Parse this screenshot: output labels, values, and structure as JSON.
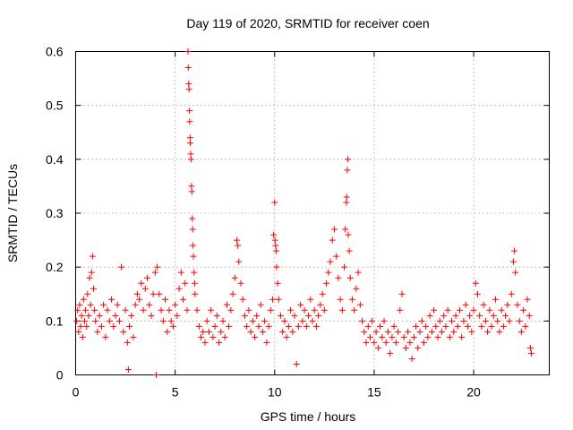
{
  "chart_data": {
    "type": "scatter",
    "title": "Day 119 of 2020, SRMTID for receiver coen",
    "xlabel": "GPS time / hours",
    "ylabel": "SRMTID / TECUs",
    "xlim": [
      0,
      23.8
    ],
    "ylim": [
      0,
      0.6
    ],
    "x_ticks": [
      0,
      5,
      10,
      15,
      20
    ],
    "y_ticks": [
      0,
      0.1,
      0.2,
      0.3,
      0.4,
      0.5,
      0.6
    ],
    "x_tick_labels": [
      "0",
      "5",
      "10",
      "15",
      "20"
    ],
    "y_tick_labels": [
      "0",
      "0.1",
      "0.2",
      "0.3",
      "0.4",
      "0.5",
      "0.6"
    ],
    "grid": true,
    "marker": "+",
    "series": [
      {
        "name": "SRMTID",
        "color": "#ff0000",
        "points": [
          [
            0.05,
            0.1
          ],
          [
            0.1,
            0.12
          ],
          [
            0.15,
            0.08
          ],
          [
            0.2,
            0.13
          ],
          [
            0.25,
            0.09
          ],
          [
            0.3,
            0.11
          ],
          [
            0.35,
            0.07
          ],
          [
            0.4,
            0.14
          ],
          [
            0.45,
            0.1
          ],
          [
            0.5,
            0.12
          ],
          [
            0.55,
            0.09
          ],
          [
            0.6,
            0.15
          ],
          [
            0.65,
            0.11
          ],
          [
            0.7,
            0.18
          ],
          [
            0.75,
            0.13
          ],
          [
            0.8,
            0.19
          ],
          [
            0.85,
            0.22
          ],
          [
            0.9,
            0.16
          ],
          [
            0.95,
            0.12
          ],
          [
            1.0,
            0.1
          ],
          [
            1.1,
            0.08
          ],
          [
            1.2,
            0.11
          ],
          [
            1.3,
            0.09
          ],
          [
            1.4,
            0.13
          ],
          [
            1.5,
            0.07
          ],
          [
            1.6,
            0.12
          ],
          [
            1.7,
            0.1
          ],
          [
            1.8,
            0.14
          ],
          [
            1.9,
            0.09
          ],
          [
            2.0,
            0.11
          ],
          [
            2.1,
            0.13
          ],
          [
            2.2,
            0.1
          ],
          [
            2.3,
            0.2
          ],
          [
            2.4,
            0.08
          ],
          [
            2.5,
            0.12
          ],
          [
            2.6,
            0.06
          ],
          [
            2.65,
            0.01
          ],
          [
            2.7,
            0.09
          ],
          [
            2.8,
            0.11
          ],
          [
            2.9,
            0.07
          ],
          [
            3.0,
            0.13
          ],
          [
            3.1,
            0.15
          ],
          [
            3.2,
            0.14
          ],
          [
            3.3,
            0.17
          ],
          [
            3.4,
            0.12
          ],
          [
            3.5,
            0.16
          ],
          [
            3.6,
            0.18
          ],
          [
            3.7,
            0.13
          ],
          [
            3.8,
            0.11
          ],
          [
            3.9,
            0.15
          ],
          [
            4.0,
            0.19
          ],
          [
            4.05,
            0.0
          ],
          [
            4.1,
            0.2
          ],
          [
            4.2,
            0.15
          ],
          [
            4.3,
            0.12
          ],
          [
            4.4,
            0.1
          ],
          [
            4.5,
            0.14
          ],
          [
            4.6,
            0.08
          ],
          [
            4.7,
            0.12
          ],
          [
            4.8,
            0.1
          ],
          [
            4.9,
            0.09
          ],
          [
            5.0,
            0.13
          ],
          [
            5.1,
            0.11
          ],
          [
            5.2,
            0.16
          ],
          [
            5.3,
            0.19
          ],
          [
            5.4,
            0.14
          ],
          [
            5.5,
            0.17
          ],
          [
            5.6,
            0.12
          ],
          [
            5.65,
            0.6
          ],
          [
            5.66,
            0.57
          ],
          [
            5.68,
            0.54
          ],
          [
            5.7,
            0.53
          ],
          [
            5.72,
            0.49
          ],
          [
            5.73,
            0.47
          ],
          [
            5.75,
            0.44
          ],
          [
            5.76,
            0.43
          ],
          [
            5.78,
            0.41
          ],
          [
            5.8,
            0.4
          ],
          [
            5.82,
            0.35
          ],
          [
            5.84,
            0.34
          ],
          [
            5.86,
            0.29
          ],
          [
            5.88,
            0.27
          ],
          [
            5.9,
            0.24
          ],
          [
            5.92,
            0.22
          ],
          [
            5.95,
            0.19
          ],
          [
            5.98,
            0.17
          ],
          [
            6.0,
            0.15
          ],
          [
            6.1,
            0.12
          ],
          [
            6.2,
            0.09
          ],
          [
            6.3,
            0.07
          ],
          [
            6.4,
            0.08
          ],
          [
            6.5,
            0.06
          ],
          [
            6.6,
            0.1
          ],
          [
            6.7,
            0.08
          ],
          [
            6.8,
            0.12
          ],
          [
            6.9,
            0.07
          ],
          [
            7.0,
            0.09
          ],
          [
            7.1,
            0.11
          ],
          [
            7.2,
            0.06
          ],
          [
            7.3,
            0.08
          ],
          [
            7.4,
            0.1
          ],
          [
            7.5,
            0.07
          ],
          [
            7.6,
            0.13
          ],
          [
            7.7,
            0.09
          ],
          [
            7.8,
            0.12
          ],
          [
            7.9,
            0.15
          ],
          [
            8.0,
            0.18
          ],
          [
            8.1,
            0.25
          ],
          [
            8.15,
            0.24
          ],
          [
            8.2,
            0.21
          ],
          [
            8.3,
            0.17
          ],
          [
            8.4,
            0.14
          ],
          [
            8.5,
            0.11
          ],
          [
            8.6,
            0.09
          ],
          [
            8.7,
            0.12
          ],
          [
            8.8,
            0.08
          ],
          [
            8.9,
            0.1
          ],
          [
            9.0,
            0.07
          ],
          [
            9.1,
            0.11
          ],
          [
            9.2,
            0.09
          ],
          [
            9.3,
            0.13
          ],
          [
            9.4,
            0.08
          ],
          [
            9.5,
            0.1
          ],
          [
            9.6,
            0.06
          ],
          [
            9.7,
            0.09
          ],
          [
            9.8,
            0.12
          ],
          [
            9.9,
            0.14
          ],
          [
            9.95,
            0.26
          ],
          [
            10.0,
            0.32
          ],
          [
            10.02,
            0.25
          ],
          [
            10.05,
            0.24
          ],
          [
            10.08,
            0.23
          ],
          [
            10.1,
            0.2
          ],
          [
            10.15,
            0.17
          ],
          [
            10.2,
            0.14
          ],
          [
            10.3,
            0.11
          ],
          [
            10.4,
            0.08
          ],
          [
            10.5,
            0.1
          ],
          [
            10.6,
            0.07
          ],
          [
            10.7,
            0.09
          ],
          [
            10.8,
            0.12
          ],
          [
            10.9,
            0.08
          ],
          [
            11.0,
            0.11
          ],
          [
            11.1,
            0.02
          ],
          [
            11.2,
            0.09
          ],
          [
            11.3,
            0.13
          ],
          [
            11.4,
            0.1
          ],
          [
            11.5,
            0.12
          ],
          [
            11.6,
            0.09
          ],
          [
            11.7,
            0.11
          ],
          [
            11.8,
            0.14
          ],
          [
            11.9,
            0.1
          ],
          [
            12.0,
            0.12
          ],
          [
            12.1,
            0.09
          ],
          [
            12.2,
            0.11
          ],
          [
            12.3,
            0.13
          ],
          [
            12.4,
            0.15
          ],
          [
            12.5,
            0.12
          ],
          [
            12.6,
            0.17
          ],
          [
            12.7,
            0.19
          ],
          [
            12.8,
            0.21
          ],
          [
            12.9,
            0.25
          ],
          [
            13.0,
            0.27
          ],
          [
            13.1,
            0.22
          ],
          [
            13.2,
            0.18
          ],
          [
            13.3,
            0.14
          ],
          [
            13.4,
            0.12
          ],
          [
            13.5,
            0.2
          ],
          [
            13.55,
            0.27
          ],
          [
            13.6,
            0.32
          ],
          [
            13.62,
            0.33
          ],
          [
            13.65,
            0.38
          ],
          [
            13.68,
            0.4
          ],
          [
            13.7,
            0.26
          ],
          [
            13.75,
            0.23
          ],
          [
            13.8,
            0.18
          ],
          [
            13.9,
            0.14
          ],
          [
            14.0,
            0.12
          ],
          [
            14.1,
            0.16
          ],
          [
            14.2,
            0.19
          ],
          [
            14.3,
            0.13
          ],
          [
            14.4,
            0.1
          ],
          [
            14.5,
            0.08
          ],
          [
            14.6,
            0.06
          ],
          [
            14.7,
            0.09
          ],
          [
            14.8,
            0.07
          ],
          [
            14.9,
            0.1
          ],
          [
            15.0,
            0.06
          ],
          [
            15.1,
            0.08
          ],
          [
            15.2,
            0.05
          ],
          [
            15.3,
            0.09
          ],
          [
            15.4,
            0.07
          ],
          [
            15.5,
            0.1
          ],
          [
            15.6,
            0.06
          ],
          [
            15.7,
            0.08
          ],
          [
            15.8,
            0.04
          ],
          [
            15.9,
            0.07
          ],
          [
            16.0,
            0.09
          ],
          [
            16.1,
            0.06
          ],
          [
            16.2,
            0.08
          ],
          [
            16.3,
            0.12
          ],
          [
            16.4,
            0.15
          ],
          [
            16.5,
            0.07
          ],
          [
            16.6,
            0.05
          ],
          [
            16.7,
            0.08
          ],
          [
            16.8,
            0.06
          ],
          [
            16.9,
            0.03
          ],
          [
            17.0,
            0.07
          ],
          [
            17.1,
            0.09
          ],
          [
            17.2,
            0.05
          ],
          [
            17.3,
            0.08
          ],
          [
            17.4,
            0.1
          ],
          [
            17.5,
            0.06
          ],
          [
            17.6,
            0.09
          ],
          [
            17.7,
            0.07
          ],
          [
            17.8,
            0.11
          ],
          [
            17.9,
            0.08
          ],
          [
            18.0,
            0.12
          ],
          [
            18.1,
            0.09
          ],
          [
            18.2,
            0.07
          ],
          [
            18.3,
            0.1
          ],
          [
            18.4,
            0.08
          ],
          [
            18.5,
            0.11
          ],
          [
            18.6,
            0.09
          ],
          [
            18.7,
            0.12
          ],
          [
            18.8,
            0.07
          ],
          [
            18.9,
            0.1
          ],
          [
            19.0,
            0.08
          ],
          [
            19.1,
            0.11
          ],
          [
            19.2,
            0.09
          ],
          [
            19.3,
            0.12
          ],
          [
            19.4,
            0.07
          ],
          [
            19.5,
            0.1
          ],
          [
            19.6,
            0.13
          ],
          [
            19.7,
            0.09
          ],
          [
            19.8,
            0.11
          ],
          [
            19.9,
            0.08
          ],
          [
            20.0,
            0.12
          ],
          [
            20.1,
            0.17
          ],
          [
            20.2,
            0.15
          ],
          [
            20.3,
            0.11
          ],
          [
            20.4,
            0.09
          ],
          [
            20.5,
            0.13
          ],
          [
            20.6,
            0.1
          ],
          [
            20.7,
            0.08
          ],
          [
            20.8,
            0.12
          ],
          [
            20.9,
            0.09
          ],
          [
            21.0,
            0.11
          ],
          [
            21.1,
            0.14
          ],
          [
            21.2,
            0.1
          ],
          [
            21.3,
            0.08
          ],
          [
            21.4,
            0.12
          ],
          [
            21.5,
            0.09
          ],
          [
            21.6,
            0.11
          ],
          [
            21.7,
            0.13
          ],
          [
            21.8,
            0.1
          ],
          [
            21.9,
            0.15
          ],
          [
            22.0,
            0.21
          ],
          [
            22.05,
            0.23
          ],
          [
            22.1,
            0.19
          ],
          [
            22.2,
            0.13
          ],
          [
            22.3,
            0.1
          ],
          [
            22.4,
            0.08
          ],
          [
            22.5,
            0.12
          ],
          [
            22.6,
            0.09
          ],
          [
            22.7,
            0.14
          ],
          [
            22.8,
            0.11
          ],
          [
            22.85,
            0.05
          ],
          [
            22.9,
            0.04
          ]
        ]
      }
    ]
  }
}
